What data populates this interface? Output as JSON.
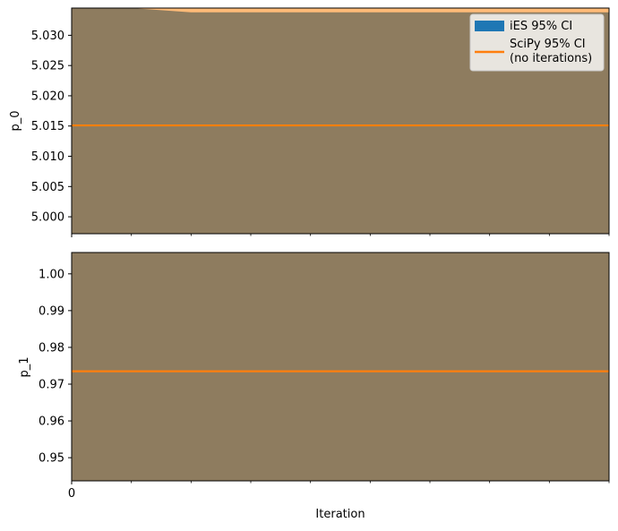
{
  "chart_data": [
    {
      "type": "area",
      "ylabel": "p_0",
      "ylim": [
        4.9972,
        5.0345
      ],
      "yticks": [
        5.0,
        5.005,
        5.01,
        5.015,
        5.02,
        5.025,
        5.03
      ],
      "ytick_labels": [
        "5.000",
        "5.005",
        "5.010",
        "5.015",
        "5.020",
        "5.025",
        "5.030"
      ],
      "xlim": [
        0,
        9
      ],
      "xticks": [
        0,
        1,
        2,
        3,
        4,
        5,
        6,
        7,
        8,
        9
      ],
      "xtick_labels": [],
      "series": [
        {
          "name": "iES 95% CI",
          "x": [
            0,
            1,
            2,
            3,
            4,
            5,
            6,
            7,
            8,
            9
          ],
          "lower": [
            4.99,
            4.99,
            4.99,
            4.99,
            4.99,
            4.99,
            4.99,
            4.99,
            4.99,
            4.99
          ],
          "upper": [
            5.035,
            5.035,
            5.0338,
            5.0338,
            5.0338,
            5.0338,
            5.0338,
            5.0338,
            5.0338,
            5.0338
          ]
        },
        {
          "name": "SciPy 95% CI\n(no iterations)",
          "x": [
            0,
            9
          ],
          "lower": [
            4.99,
            4.99
          ],
          "upper": [
            5.0345,
            5.0345
          ],
          "value": 5.0151
        }
      ],
      "legend": "top-right",
      "grid": false
    },
    {
      "type": "area",
      "ylabel": "p_1",
      "xlabel": "Iteration",
      "ylim": [
        0.9437,
        1.0058
      ],
      "yticks": [
        0.95,
        0.96,
        0.97,
        0.98,
        0.99,
        1.0
      ],
      "ytick_labels": [
        "0.95",
        "0.96",
        "0.97",
        "0.98",
        "0.99",
        "1.00"
      ],
      "xlim": [
        0,
        9
      ],
      "xticks": [
        0,
        1,
        2,
        3,
        4,
        5,
        6,
        7,
        8,
        9
      ],
      "xtick_labels": [
        "0"
      ],
      "series": [
        {
          "name": "iES 95% CI",
          "x": [
            0,
            1,
            2,
            3,
            4,
            5,
            6,
            7,
            8,
            9
          ],
          "lower": [
            0.9432,
            0.9432,
            0.9437,
            0.9437,
            0.9437,
            0.9437,
            0.9437,
            0.9437,
            0.9437,
            0.9437
          ],
          "upper": [
            1.01,
            1.01,
            1.01,
            1.01,
            1.01,
            1.01,
            1.01,
            1.01,
            1.01,
            1.01
          ]
        },
        {
          "name": "SciPy 95% CI\n(no iterations)",
          "x": [
            0,
            9
          ],
          "lower": [
            0.9437,
            0.9437
          ],
          "upper": [
            1.01,
            1.01
          ],
          "value": 0.9735
        }
      ],
      "grid": false
    }
  ],
  "colors": {
    "ies": "#1f77b4",
    "scipy": "#ff7f0e",
    "scipy_fill": "#ffbb78",
    "overlap": "#8e7c5f"
  }
}
